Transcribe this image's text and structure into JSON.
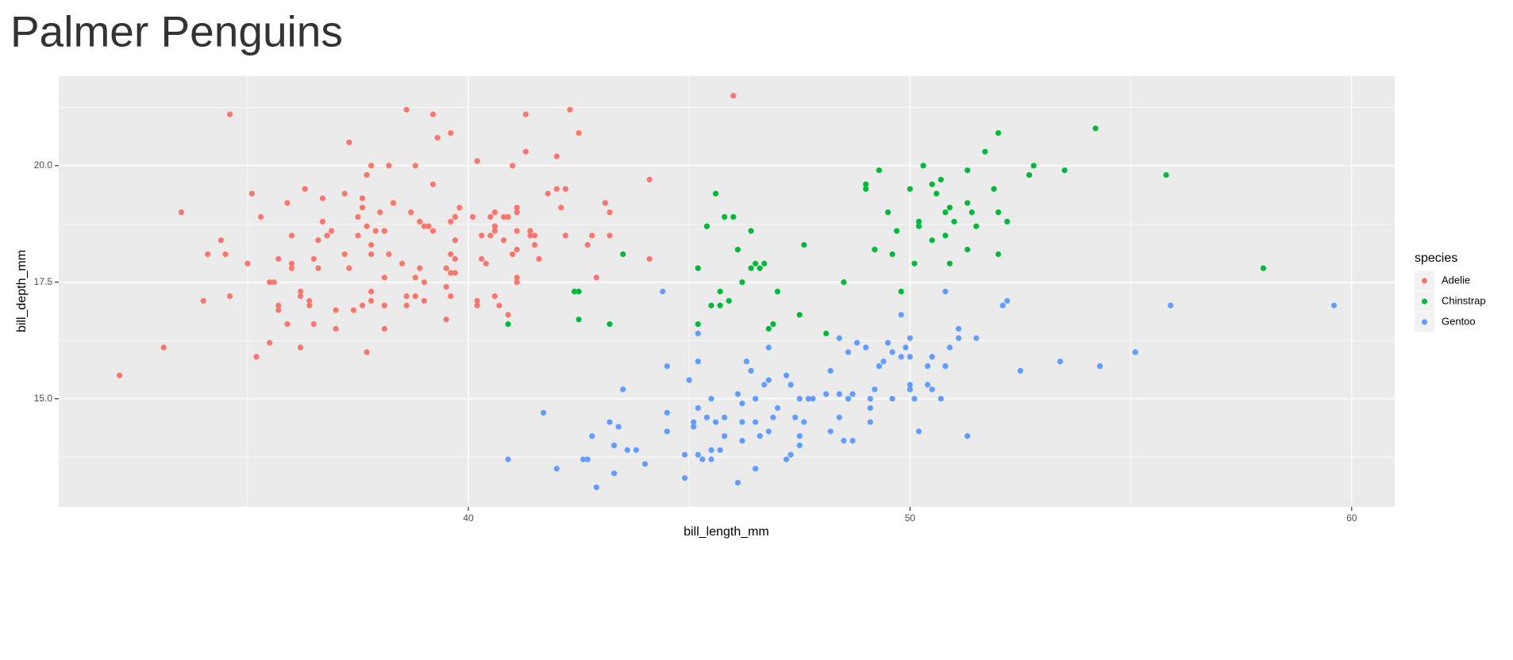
{
  "chart_data": {
    "type": "scatter",
    "title": "Palmer Penguins",
    "x_label": "bill_length_mm",
    "y_label": "bill_depth_mm",
    "legend_title": "species",
    "legend": "right",
    "grid": true,
    "xlim": [
      30.725,
      60.975
    ],
    "ylim": [
      12.68,
      21.92
    ],
    "xticks": [
      40,
      50,
      60
    ],
    "yticks": [
      {
        "value": 15,
        "label": "15.0"
      },
      {
        "value": 17.5,
        "label": "17.5"
      },
      {
        "value": 20,
        "label": "20.0"
      }
    ],
    "x_minor_grid": [
      35,
      45,
      55
    ],
    "y_minor_grid": [
      13.75,
      16.25,
      18.75,
      21.25
    ],
    "series": [
      {
        "name": "Adelie",
        "color": "#F8766D",
        "x": [
          32.1,
          33.1,
          33.5,
          34.0,
          34.1,
          34.4,
          34.5,
          34.6,
          34.6,
          35.0,
          35.1,
          35.2,
          35.3,
          35.5,
          35.5,
          35.6,
          35.7,
          35.7,
          35.7,
          35.9,
          35.9,
          36.0,
          36.0,
          36.0,
          36.2,
          36.2,
          36.2,
          36.3,
          36.4,
          36.4,
          36.5,
          36.5,
          36.6,
          36.6,
          36.7,
          36.7,
          36.8,
          36.9,
          37.0,
          37.0,
          37.2,
          37.2,
          37.3,
          37.3,
          37.4,
          37.5,
          37.5,
          37.6,
          37.6,
          37.6,
          37.7,
          37.7,
          37.7,
          37.8,
          37.8,
          37.8,
          37.8,
          37.8,
          37.9,
          38.0,
          38.1,
          38.1,
          38.1,
          38.1,
          38.2,
          38.2,
          38.3,
          38.5,
          38.6,
          38.6,
          38.6,
          38.7,
          38.8,
          38.8,
          38.8,
          38.9,
          38.9,
          39.0,
          39.0,
          39.0,
          39.1,
          39.2,
          39.2,
          39.2,
          39.3,
          39.5,
          39.5,
          39.5,
          39.6,
          39.6,
          39.6,
          39.6,
          39.6,
          39.7,
          39.7,
          39.7,
          39.7,
          39.8,
          40.1,
          40.2,
          40.2,
          40.2,
          40.3,
          40.3,
          40.4,
          40.5,
          40.5,
          40.6,
          40.6,
          40.6,
          40.6,
          40.7,
          40.8,
          40.8,
          40.9,
          40.9,
          41.0,
          41.0,
          41.1,
          41.1,
          41.1,
          41.1,
          41.1,
          41.1,
          41.3,
          41.3,
          41.4,
          41.4,
          41.4,
          41.5,
          41.5,
          41.6,
          41.8,
          42.0,
          42.0,
          42.1,
          42.2,
          42.2,
          42.3,
          42.5,
          42.7,
          42.8,
          42.9,
          43.1,
          43.2,
          43.2,
          44.1,
          44.1,
          46.0
        ],
        "y": [
          15.5,
          16.1,
          19.0,
          17.1,
          18.1,
          18.4,
          18.1,
          21.1,
          17.2,
          17.9,
          19.4,
          15.9,
          18.9,
          16.2,
          17.5,
          17.5,
          18.0,
          17.0,
          16.9,
          16.6,
          19.2,
          18.5,
          17.9,
          17.8,
          17.3,
          17.2,
          16.1,
          19.5,
          17.1,
          17.0,
          18.0,
          16.6,
          17.8,
          18.4,
          18.8,
          19.3,
          18.5,
          18.6,
          16.9,
          16.5,
          19.4,
          18.1,
          17.8,
          20.5,
          16.9,
          18.5,
          18.9,
          19.3,
          19.1,
          17.0,
          18.7,
          16.0,
          19.8,
          17.3,
          20.0,
          18.3,
          18.1,
          17.1,
          18.6,
          19.0,
          17.6,
          18.6,
          17.0,
          16.5,
          18.1,
          20.0,
          19.2,
          17.9,
          17.2,
          21.2,
          17.0,
          19.0,
          20.0,
          17.6,
          17.2,
          18.8,
          17.8,
          18.7,
          17.1,
          17.5,
          18.7,
          19.6,
          21.1,
          18.6,
          20.6,
          17.8,
          17.4,
          16.7,
          18.8,
          18.1,
          17.2,
          20.7,
          17.7,
          18.9,
          17.7,
          18.0,
          18.4,
          19.1,
          18.9,
          20.1,
          17.1,
          17.0,
          18.5,
          18.0,
          17.9,
          18.9,
          18.5,
          18.7,
          17.2,
          19.0,
          18.6,
          17.0,
          18.4,
          18.9,
          18.9,
          16.8,
          20.0,
          18.1,
          19.1,
          19.0,
          18.6,
          18.2,
          17.6,
          17.5,
          20.3,
          21.1,
          18.6,
          18.5,
          18.6,
          18.5,
          18.3,
          18.0,
          19.4,
          20.2,
          19.5,
          19.1,
          19.5,
          18.5,
          21.2,
          20.7,
          18.3,
          18.5,
          17.6,
          19.2,
          19.0,
          18.5,
          19.7,
          18.0,
          21.5
        ]
      },
      {
        "name": "Chinstrap",
        "color": "#00BA38",
        "x": [
          40.9,
          42.4,
          42.5,
          42.5,
          43.2,
          43.5,
          45.2,
          45.2,
          45.4,
          45.5,
          45.6,
          45.7,
          45.7,
          45.8,
          45.9,
          46.0,
          46.1,
          46.2,
          46.4,
          46.4,
          46.5,
          46.6,
          46.7,
          46.8,
          46.9,
          47.0,
          47.5,
          47.6,
          48.1,
          48.5,
          49.0,
          49.0,
          49.2,
          49.3,
          49.5,
          49.6,
          49.7,
          49.8,
          50.0,
          50.1,
          50.2,
          50.2,
          50.3,
          50.5,
          50.5,
          50.6,
          50.7,
          50.8,
          50.8,
          50.9,
          50.9,
          51.0,
          51.3,
          51.3,
          51.3,
          51.4,
          51.5,
          51.7,
          51.9,
          52.0,
          52.0,
          52.0,
          52.2,
          52.7,
          52.8,
          53.5,
          54.2,
          55.8,
          58.0
        ],
        "y": [
          16.6,
          17.3,
          17.3,
          16.7,
          16.6,
          18.1,
          17.8,
          16.6,
          18.7,
          17.0,
          19.4,
          17.3,
          17.0,
          18.9,
          17.1,
          18.9,
          18.2,
          17.5,
          18.6,
          17.8,
          17.9,
          17.8,
          17.9,
          16.5,
          16.6,
          17.3,
          16.8,
          18.3,
          16.4,
          17.5,
          19.6,
          19.5,
          18.2,
          19.9,
          19.0,
          18.1,
          18.6,
          17.3,
          19.5,
          17.9,
          18.7,
          18.8,
          20.0,
          19.6,
          18.4,
          19.4,
          19.7,
          19.0,
          18.5,
          19.1,
          17.9,
          18.8,
          19.9,
          19.2,
          18.2,
          19.0,
          18.7,
          20.3,
          19.5,
          20.7,
          19.0,
          18.1,
          18.8,
          19.8,
          20.0,
          19.9,
          20.8,
          19.8,
          17.8
        ]
      },
      {
        "name": "Gentoo",
        "color": "#619CFF",
        "x": [
          40.9,
          41.7,
          42.0,
          42.6,
          42.7,
          42.8,
          42.9,
          43.2,
          43.3,
          43.3,
          43.4,
          43.6,
          43.5,
          43.8,
          44.0,
          44.4,
          44.5,
          44.5,
          44.5,
          44.9,
          44.9,
          45.0,
          45.1,
          45.1,
          45.2,
          45.2,
          45.2,
          45.2,
          45.3,
          45.4,
          45.5,
          45.5,
          45.5,
          45.6,
          45.7,
          45.8,
          45.8,
          46.1,
          46.1,
          46.2,
          46.2,
          46.2,
          46.3,
          46.4,
          46.5,
          46.5,
          46.5,
          46.6,
          46.7,
          46.8,
          46.8,
          46.8,
          46.9,
          47.0,
          47.2,
          47.2,
          47.3,
          47.3,
          47.4,
          47.5,
          47.5,
          47.5,
          47.6,
          47.7,
          47.8,
          48.1,
          48.2,
          48.2,
          48.4,
          48.4,
          48.4,
          48.5,
          48.6,
          48.6,
          48.7,
          48.7,
          48.8,
          49.0,
          49.1,
          49.1,
          49.1,
          49.2,
          49.3,
          49.4,
          49.5,
          49.6,
          49.6,
          49.8,
          49.8,
          49.9,
          50.0,
          50.0,
          50.0,
          50.0,
          50.1,
          50.2,
          50.4,
          50.4,
          50.5,
          50.5,
          50.7,
          50.8,
          50.8,
          50.9,
          51.1,
          51.1,
          51.3,
          51.5,
          52.1,
          52.2,
          52.5,
          53.4,
          54.3,
          55.1,
          55.9,
          59.6
        ],
        "y": [
          13.7,
          14.7,
          13.5,
          13.7,
          13.7,
          14.2,
          13.1,
          14.5,
          14.0,
          13.4,
          14.4,
          13.9,
          15.2,
          13.9,
          13.6,
          17.3,
          15.7,
          14.7,
          14.3,
          13.3,
          13.8,
          15.4,
          14.5,
          14.4,
          14.8,
          16.4,
          15.8,
          13.8,
          13.7,
          14.6,
          15.0,
          13.9,
          13.7,
          14.5,
          13.9,
          14.2,
          14.6,
          15.1,
          13.2,
          14.9,
          14.5,
          14.1,
          15.8,
          15.6,
          14.5,
          13.5,
          15.0,
          14.2,
          15.3,
          16.1,
          15.4,
          14.3,
          14.6,
          14.8,
          13.7,
          15.5,
          13.8,
          15.3,
          14.6,
          15.0,
          14.2,
          14.0,
          14.5,
          15.0,
          15.0,
          15.1,
          15.6,
          14.3,
          14.6,
          16.3,
          15.1,
          14.1,
          16.0,
          15.0,
          15.1,
          14.1,
          16.2,
          16.1,
          14.8,
          14.5,
          15.0,
          15.2,
          15.7,
          15.8,
          16.2,
          16.0,
          15.0,
          16.8,
          15.9,
          16.1,
          15.3,
          15.2,
          15.9,
          16.3,
          15.0,
          14.3,
          15.7,
          15.3,
          15.9,
          15.2,
          15.0,
          15.7,
          17.3,
          16.1,
          16.5,
          16.3,
          14.2,
          16.3,
          17.0,
          17.1,
          15.6,
          15.8,
          15.7,
          16.0,
          17.0,
          17.0
        ]
      }
    ]
  }
}
